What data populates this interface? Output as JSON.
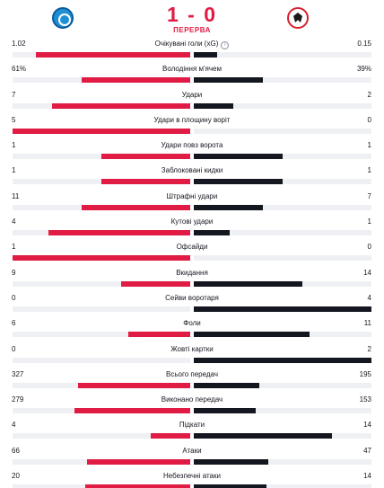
{
  "match": {
    "score": "1 - 0",
    "period": "ПЕРЕРВА",
    "home_logo": "napoli-crest-icon",
    "away_logo": "eintracht-eagle-icon"
  },
  "colors": {
    "home": "#e01b44",
    "away": "#14171f",
    "track": "#eef0f3",
    "accent": "#e01b44"
  },
  "stats": [
    {
      "label": "Очікувані голи (xG)",
      "home": "1.02",
      "away": "0.15",
      "home_share": 0.87,
      "away_share": 0.13,
      "info": true
    },
    {
      "label": "Володіння м'ячем",
      "home": "61%",
      "away": "39%",
      "home_share": 0.61,
      "away_share": 0.39
    },
    {
      "label": "Удари",
      "home": "7",
      "away": "2",
      "home_share": 0.78,
      "away_share": 0.22
    },
    {
      "label": "Удари в площину воріт",
      "home": "5",
      "away": "0",
      "home_share": 1.0,
      "away_share": 0.0
    },
    {
      "label": "Удари повз ворота",
      "home": "1",
      "away": "1",
      "home_share": 0.5,
      "away_share": 0.5
    },
    {
      "label": "Заблоковані кидки",
      "home": "1",
      "away": "1",
      "home_share": 0.5,
      "away_share": 0.5
    },
    {
      "label": "Штрафні удари",
      "home": "11",
      "away": "7",
      "home_share": 0.61,
      "away_share": 0.39
    },
    {
      "label": "Кутові удари",
      "home": "4",
      "away": "1",
      "home_share": 0.8,
      "away_share": 0.2
    },
    {
      "label": "Офсайди",
      "home": "1",
      "away": "0",
      "home_share": 1.0,
      "away_share": 0.0
    },
    {
      "label": "Вкидання",
      "home": "9",
      "away": "14",
      "home_share": 0.39,
      "away_share": 0.61
    },
    {
      "label": "Сейви воротаря",
      "home": "0",
      "away": "4",
      "home_share": 0.0,
      "away_share": 1.0
    },
    {
      "label": "Фоли",
      "home": "6",
      "away": "11",
      "home_share": 0.35,
      "away_share": 0.65
    },
    {
      "label": "Жовті картки",
      "home": "0",
      "away": "2",
      "home_share": 0.0,
      "away_share": 1.0
    },
    {
      "label": "Всього передач",
      "home": "327",
      "away": "195",
      "home_share": 0.63,
      "away_share": 0.37
    },
    {
      "label": "Виконано передач",
      "home": "279",
      "away": "153",
      "home_share": 0.65,
      "away_share": 0.35
    },
    {
      "label": "Підкати",
      "home": "4",
      "away": "14",
      "home_share": 0.22,
      "away_share": 0.78
    },
    {
      "label": "Атаки",
      "home": "66",
      "away": "47",
      "home_share": 0.58,
      "away_share": 0.42
    },
    {
      "label": "Небезпечні атаки",
      "home": "20",
      "away": "14",
      "home_share": 0.59,
      "away_share": 0.41
    }
  ]
}
